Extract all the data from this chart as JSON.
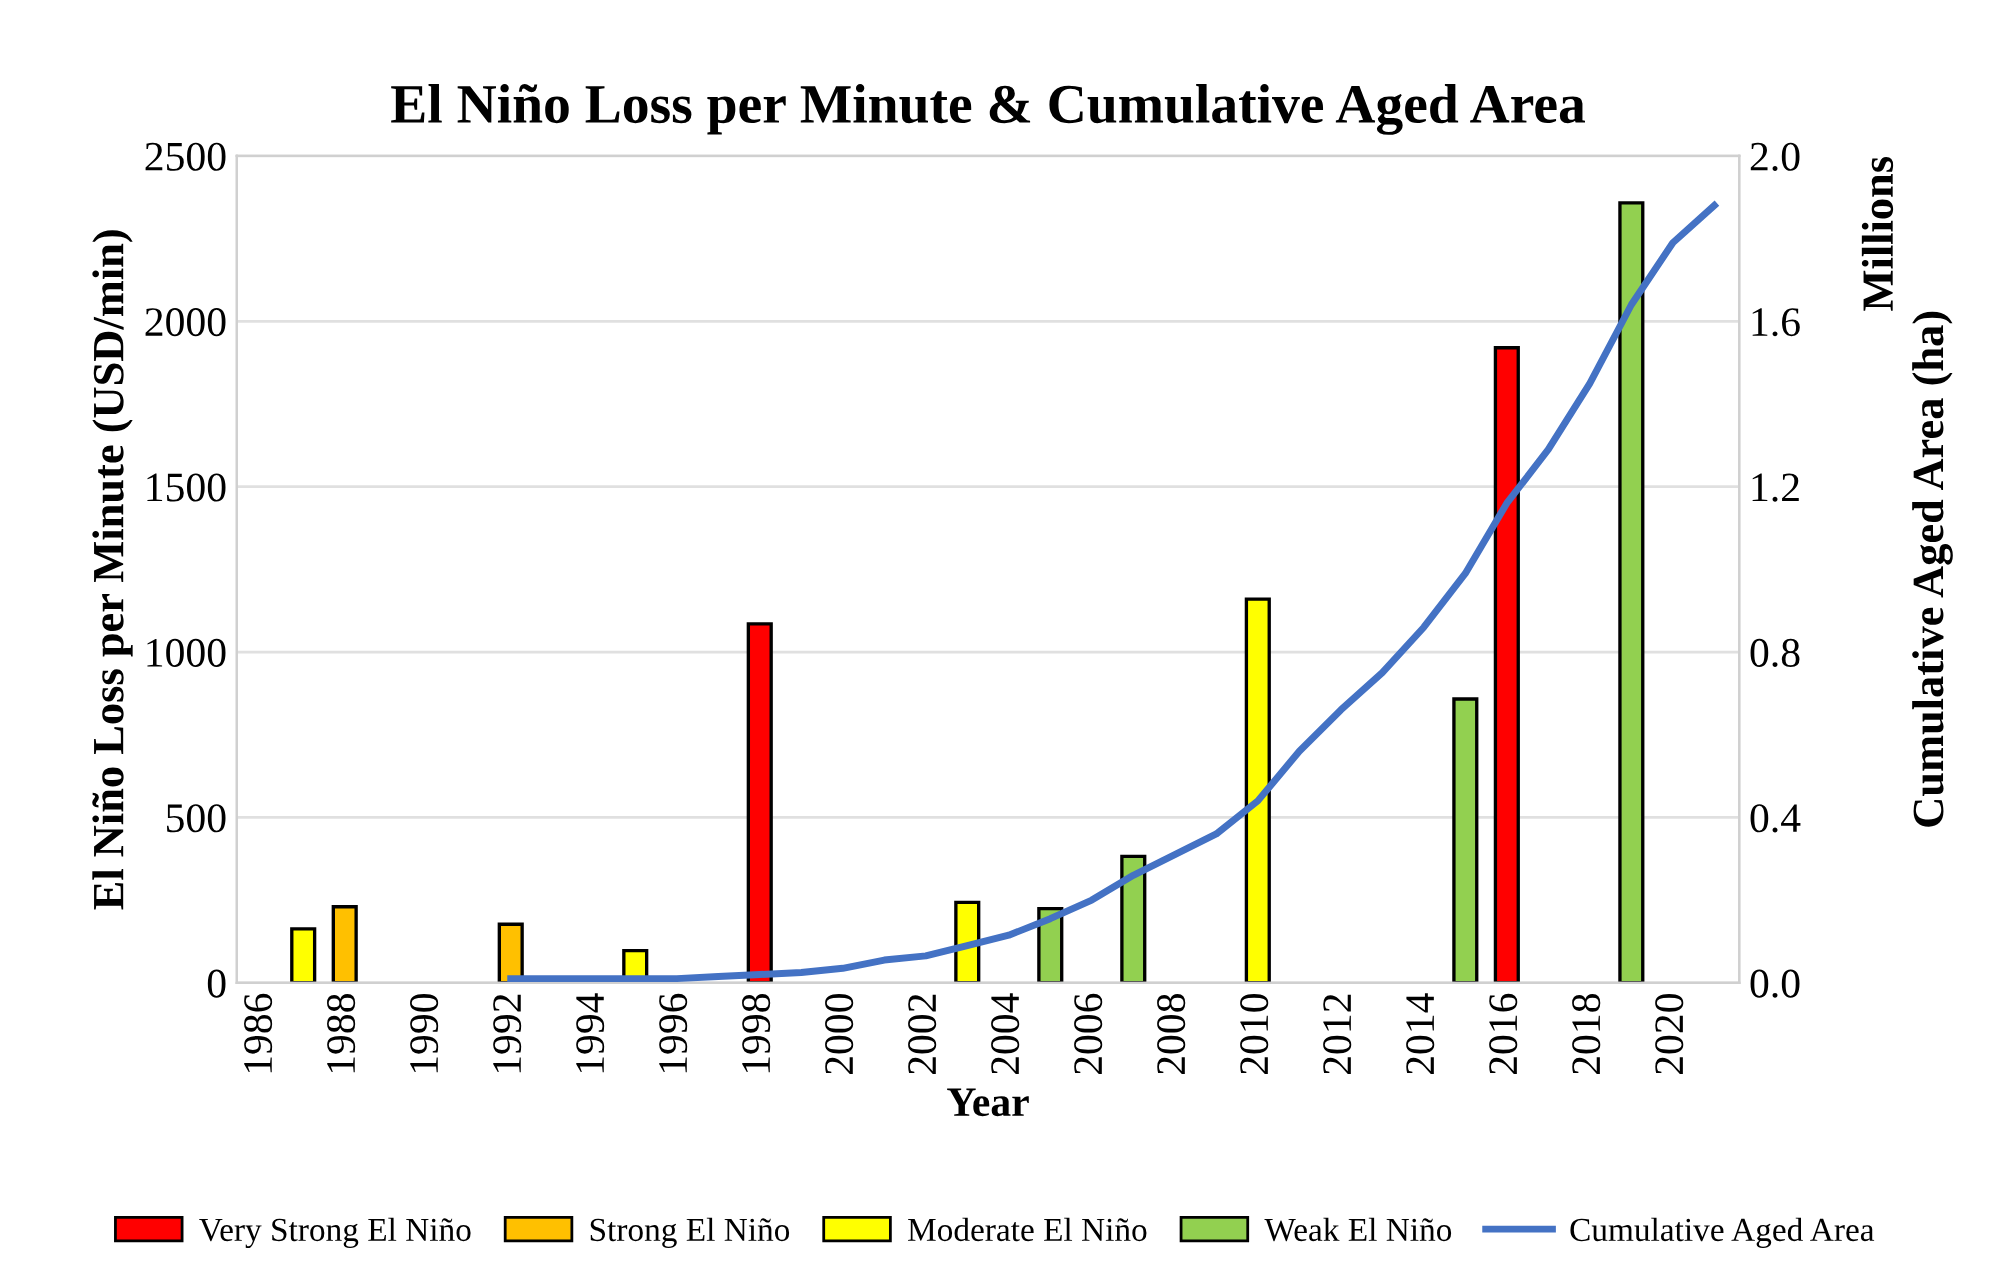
{
  "chart_data": {
    "type": "bar",
    "title": "El Niño Loss per Minute & Cumulative Aged Area",
    "xlabel": "Year",
    "ylabel": "El Niño Loss per Minute (USD/min)",
    "y2label": "Cumulative Aged Area (ha)",
    "annotations": [
      "Millions"
    ],
    "series": [
      {
        "name": "Very Strong El Niño",
        "color": "#ff0000",
        "x": [
          1998,
          2016
        ],
        "values": [
          1085,
          1920
        ]
      },
      {
        "name": "Strong El Niño",
        "color": "#ffc000",
        "x": [
          1988,
          1992
        ],
        "values": [
          230,
          177
        ]
      },
      {
        "name": "Moderate El Niño",
        "color": "#ffff00",
        "x": [
          1987,
          1995,
          2003,
          2010
        ],
        "values": [
          163,
          97,
          243,
          1160
        ]
      },
      {
        "name": "Weak El Niño",
        "color": "#92d050",
        "x": [
          2005,
          2007,
          2015,
          2019
        ],
        "values": [
          224,
          382,
          858,
          2358
        ]
      },
      {
        "name": "Cumulative Aged Area",
        "type": "line",
        "axis": "y2",
        "color": "#4472c4",
        "x": [
          1992,
          1993,
          1994,
          1995,
          1996,
          1997,
          1998,
          1999,
          2000,
          2001,
          2002,
          2003,
          2004,
          2005,
          2006,
          2007,
          2008,
          2009,
          2010,
          2011,
          2012,
          2013,
          2014,
          2015,
          2016,
          2017,
          2018,
          2019,
          2020,
          2021
        ],
        "values": [
          0.01,
          0.01,
          0.01,
          0.01,
          0.01,
          0.015,
          0.02,
          0.025,
          0.035,
          0.055,
          0.065,
          0.09,
          0.115,
          0.155,
          0.2,
          0.26,
          0.31,
          0.36,
          0.44,
          0.56,
          0.66,
          0.75,
          0.86,
          0.99,
          1.16,
          1.29,
          1.45,
          1.64,
          1.79,
          1.88
        ]
      }
    ],
    "xlim": [
      1985.4,
      2021.6
    ],
    "xticks": [
      1986,
      1988,
      1990,
      1992,
      1994,
      1996,
      1998,
      2000,
      2002,
      2004,
      2006,
      2008,
      2010,
      2012,
      2014,
      2016,
      2018,
      2020
    ],
    "ylim": [
      0,
      2500
    ],
    "yticks": [
      0,
      500,
      1000,
      1500,
      2000,
      2500
    ],
    "y2lim": [
      0,
      2.0
    ],
    "y2ticks": [
      {
        "value": 0,
        "label": "0.0"
      },
      {
        "value": 0.4,
        "label": "0.4"
      },
      {
        "value": 0.8,
        "label": "0.8"
      },
      {
        "value": 1.2,
        "label": "1.2"
      },
      {
        "value": 1.6,
        "label": "1.6"
      },
      {
        "value": 2.0,
        "label": "2.0"
      }
    ],
    "grid": "y",
    "legend": "bottom",
    "line_style": "solid",
    "marker": "none"
  }
}
